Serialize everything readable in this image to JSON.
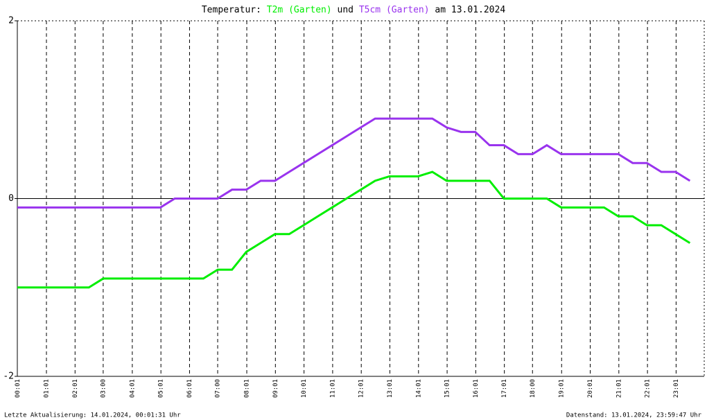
{
  "chart_data": {
    "type": "line",
    "title_prefix": "Temperatur:",
    "title_join": "und",
    "title_suffix": "am 13.01.2024",
    "footer_left": "Letzte Aktualisierung: 14.01.2024, 00:01:31 Uhr",
    "footer_right": "Datenstand: 13.01.2024, 23:59:47 Uhr",
    "x": [
      0,
      0.5,
      1,
      1.5,
      2,
      2.5,
      3,
      3.5,
      4,
      4.5,
      5,
      5.5,
      6,
      6.5,
      7,
      7.5,
      8,
      8.5,
      9,
      9.5,
      10,
      10.5,
      11,
      11.5,
      12,
      12.5,
      13,
      13.5,
      14,
      14.5,
      15,
      15.5,
      16,
      16.5,
      17,
      17.5,
      18,
      18.5,
      19,
      19.5,
      20,
      20.5,
      21,
      21.5,
      22,
      22.5,
      23,
      23.5
    ],
    "series": [
      {
        "name": "T2m (Garten)",
        "color": "#00ee00",
        "values": [
          -1,
          -1,
          -1,
          -1,
          -1,
          -1,
          -0.9,
          -0.9,
          -0.9,
          -0.9,
          -0.9,
          -0.9,
          -0.9,
          -0.9,
          -0.8,
          -0.8,
          -0.6,
          -0.5,
          -0.4,
          -0.4,
          -0.3,
          -0.2,
          -0.1,
          0,
          0.1,
          0.2,
          0.25,
          0.25,
          0.25,
          0.3,
          0.2,
          0.2,
          0.2,
          0.2,
          0,
          0,
          0,
          0,
          -0.1,
          -0.1,
          -0.1,
          -0.1,
          -0.2,
          -0.2,
          -0.3,
          -0.3,
          -0.4,
          -0.5
        ]
      },
      {
        "name": "T5cm (Garten)",
        "color": "#9933ee",
        "values": [
          -0.1,
          -0.1,
          -0.1,
          -0.1,
          -0.1,
          -0.1,
          -0.1,
          -0.1,
          -0.1,
          -0.1,
          -0.1,
          0,
          0,
          0,
          0,
          0.1,
          0.1,
          0.2,
          0.2,
          0.3,
          0.4,
          0.5,
          0.6,
          0.7,
          0.8,
          0.9,
          0.9,
          0.9,
          0.9,
          0.9,
          0.8,
          0.75,
          0.75,
          0.6,
          0.6,
          0.5,
          0.5,
          0.6,
          0.5,
          0.5,
          0.5,
          0.5,
          0.5,
          0.4,
          0.4,
          0.3,
          0.3,
          0.2
        ]
      }
    ],
    "xlim": [
      0,
      24
    ],
    "xticks": [
      {
        "value": 0.017,
        "label": "00:01"
      },
      {
        "value": 1.017,
        "label": "01:01"
      },
      {
        "value": 2.017,
        "label": "02:01"
      },
      {
        "value": 3,
        "label": "03:00"
      },
      {
        "value": 4.017,
        "label": "04:01"
      },
      {
        "value": 5.017,
        "label": "05:01"
      },
      {
        "value": 6.017,
        "label": "06:01"
      },
      {
        "value": 7,
        "label": "07:00"
      },
      {
        "value": 8.017,
        "label": "08:01"
      },
      {
        "value": 9.017,
        "label": "09:01"
      },
      {
        "value": 10.017,
        "label": "10:01"
      },
      {
        "value": 11.017,
        "label": "11:01"
      },
      {
        "value": 12.017,
        "label": "12:01"
      },
      {
        "value": 13.017,
        "label": "13:01"
      },
      {
        "value": 14.017,
        "label": "14:01"
      },
      {
        "value": 15.017,
        "label": "15:01"
      },
      {
        "value": 16.017,
        "label": "16:01"
      },
      {
        "value": 17.017,
        "label": "17:01"
      },
      {
        "value": 18,
        "label": "18:00"
      },
      {
        "value": 19.017,
        "label": "19:01"
      },
      {
        "value": 20.017,
        "label": "20:01"
      },
      {
        "value": 21.017,
        "label": "21:01"
      },
      {
        "value": 22.017,
        "label": "22:01"
      },
      {
        "value": 23.017,
        "label": "23:01"
      }
    ],
    "ylim": [
      -2,
      2
    ],
    "yticks": [
      -2,
      0,
      2
    ]
  }
}
